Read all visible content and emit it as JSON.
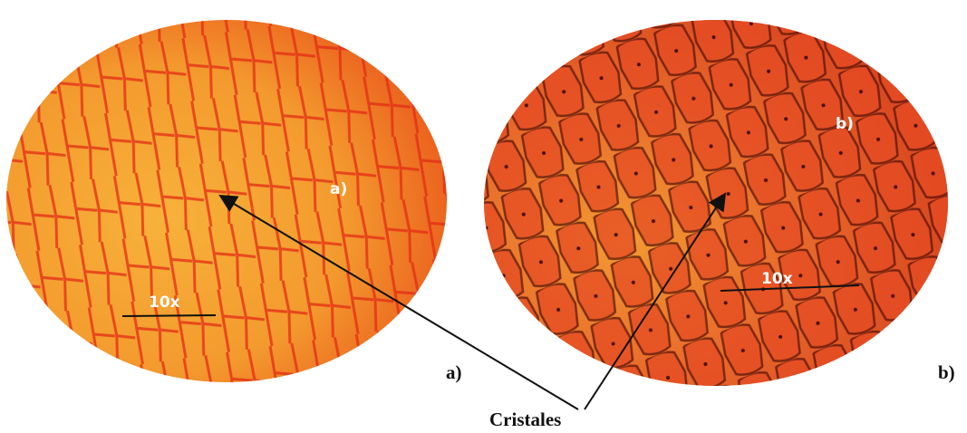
{
  "panels": [
    {
      "label": "a)",
      "scale": "10x",
      "caption": "a)"
    },
    {
      "label": "b)",
      "scale": "10x",
      "caption": "b)"
    }
  ],
  "pointer_label": "Cristales"
}
